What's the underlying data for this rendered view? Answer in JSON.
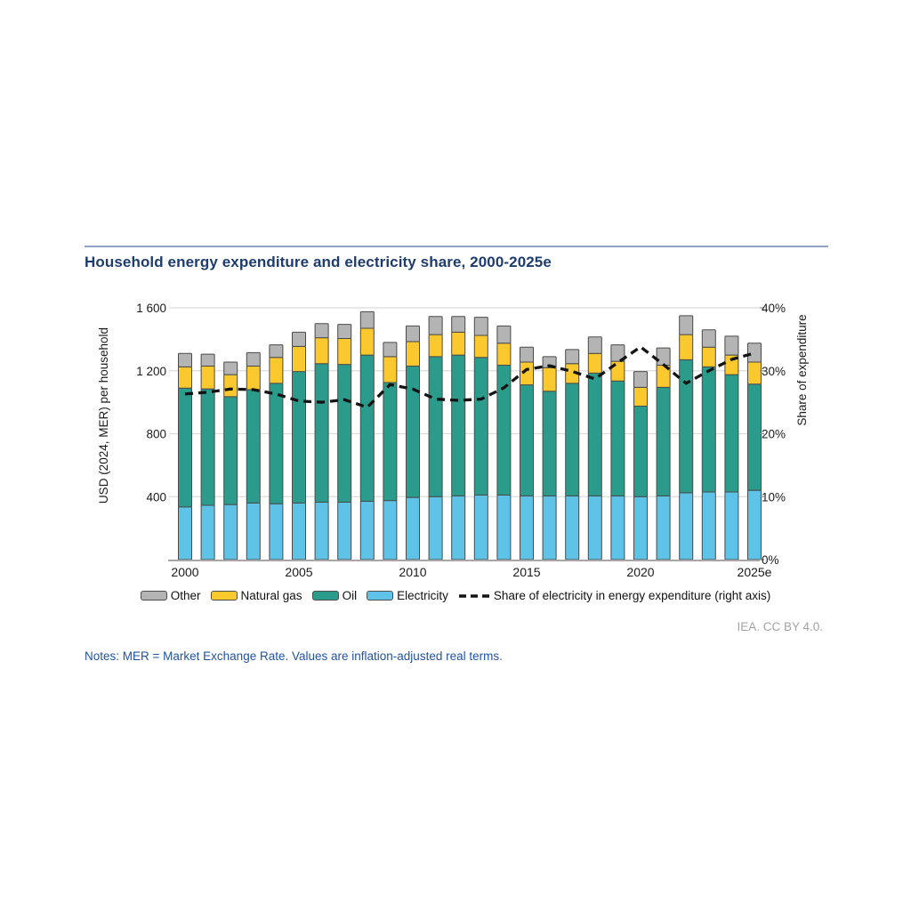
{
  "header": {
    "title": "Household energy expenditure and electricity share, 2000-2025e"
  },
  "chart_data": {
    "type": "bar",
    "subtype": "stacked-bars-with-line",
    "title": "Household energy expenditure and electricity share, 2000-2025e",
    "categories": [
      "2000",
      "2001",
      "2002",
      "2003",
      "2004",
      "2005",
      "2006",
      "2007",
      "2008",
      "2009",
      "2010",
      "2011",
      "2012",
      "2013",
      "2014",
      "2015",
      "2016",
      "2017",
      "2018",
      "2019",
      "2020",
      "2021",
      "2022",
      "2023",
      "2024",
      "2025"
    ],
    "x_tick_labels": [
      "2000",
      "2005",
      "2010",
      "2015",
      "2020",
      "2025e"
    ],
    "x_tick_indices": [
      0,
      5,
      10,
      15,
      20,
      25
    ],
    "series": [
      {
        "name": "Electricity",
        "color": "#5fc3e8",
        "values": [
          335,
          345,
          350,
          360,
          355,
          360,
          365,
          365,
          370,
          375,
          395,
          400,
          405,
          410,
          410,
          405,
          405,
          405,
          405,
          405,
          400,
          405,
          425,
          430,
          430,
          440
        ]
      },
      {
        "name": "Oil",
        "color": "#2b9c8c",
        "values": [
          755,
          740,
          685,
          720,
          765,
          835,
          880,
          875,
          930,
          750,
          835,
          890,
          895,
          875,
          825,
          705,
          665,
          715,
          780,
          730,
          575,
          690,
          845,
          795,
          745,
          675
        ]
      },
      {
        "name": "Natural gas",
        "color": "#fbc92e",
        "values": [
          135,
          145,
          140,
          150,
          165,
          160,
          165,
          165,
          170,
          165,
          155,
          140,
          145,
          140,
          140,
          145,
          150,
          125,
          125,
          125,
          120,
          140,
          160,
          125,
          125,
          140
        ]
      },
      {
        "name": "Other",
        "color": "#b4b4b4",
        "values": [
          85,
          75,
          80,
          85,
          80,
          90,
          90,
          90,
          105,
          90,
          100,
          115,
          100,
          115,
          110,
          95,
          70,
          90,
          105,
          105,
          100,
          110,
          120,
          110,
          120,
          120
        ]
      }
    ],
    "line_series": {
      "name": "Share of electricity in energy expenditure (right axis)",
      "axis": "right",
      "style": "dashed",
      "color": "#141414",
      "values": [
        26.3,
        26.6,
        27.1,
        27.0,
        26.3,
        25.2,
        25.0,
        25.4,
        24.2,
        27.8,
        27.1,
        25.5,
        25.3,
        25.5,
        27.3,
        30.2,
        30.8,
        29.9,
        28.7,
        31.3,
        33.8,
        31.0,
        28.0,
        30.0,
        31.8,
        32.8
      ]
    },
    "left_axis": {
      "label": "USD (2024, MER) per household",
      "ticks": [
        "1 600",
        "1 200",
        "800",
        "400"
      ],
      "tick_values": [
        1600,
        1200,
        800,
        400
      ],
      "min": 0,
      "max": 1600
    },
    "right_axis": {
      "label": "Share of expenditure",
      "ticks": [
        "40%",
        "30%",
        "20%",
        "10%",
        "0%"
      ],
      "tick_values": [
        40,
        30,
        20,
        10,
        0
      ],
      "min": 0,
      "max": 40
    },
    "grid": true,
    "legend_position": "bottom"
  },
  "legend": {
    "items": [
      {
        "label": "Other",
        "color": "#b4b4b4",
        "type": "swatch"
      },
      {
        "label": "Natural gas",
        "color": "#fbc92e",
        "type": "swatch"
      },
      {
        "label": "Oil",
        "color": "#2b9c8c",
        "type": "swatch"
      },
      {
        "label": "Electricity",
        "color": "#5fc3e8",
        "type": "swatch"
      },
      {
        "label": "Share of electricity in energy expenditure (right axis)",
        "color": "#141414",
        "type": "dashed-line"
      }
    ]
  },
  "footer": {
    "credit": "IEA. CC BY 4.0.",
    "notes": "Notes: MER = Market Exchange Rate. Values are inflation-adjusted real terms."
  }
}
